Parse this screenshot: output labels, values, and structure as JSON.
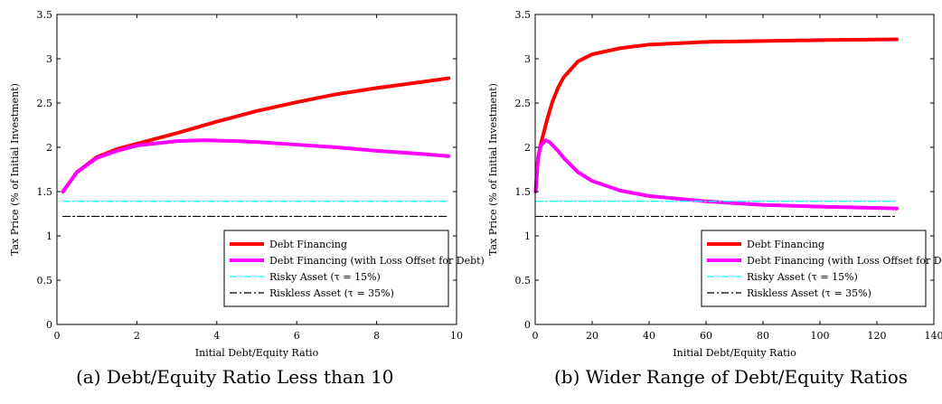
{
  "chart_data": [
    {
      "type": "line",
      "caption": "(a) Debt/Equity Ratio Less than 10",
      "xlabel": "Initial Debt/Equity Ratio",
      "ylabel": "Tax Price (% of Initial Investment)",
      "xlim": [
        0,
        10
      ],
      "ylim": [
        0,
        3.5
      ],
      "xticks": [
        0,
        2,
        4,
        6,
        8,
        10
      ],
      "yticks": [
        0,
        0.5,
        1,
        1.5,
        2,
        2.5,
        3,
        3.5
      ],
      "legend_position": "bottom-right",
      "series": [
        {
          "name": "Debt Financing",
          "color": "#ff0000",
          "style": "solid",
          "width": 4,
          "x": [
            0.15,
            0.5,
            1,
            1.5,
            2,
            3,
            4,
            5,
            6,
            7,
            8,
            9,
            9.8
          ],
          "y": [
            1.5,
            1.72,
            1.89,
            1.98,
            2.04,
            2.16,
            2.29,
            2.41,
            2.51,
            2.6,
            2.67,
            2.73,
            2.78
          ]
        },
        {
          "name": "Debt Financing (with Loss Offset for Debt)",
          "color": "#ff00ff",
          "style": "solid",
          "width": 4,
          "x": [
            0.15,
            0.5,
            1,
            1.5,
            2,
            3,
            3.7,
            4.5,
            5,
            6,
            7,
            8,
            9,
            9.8
          ],
          "y": [
            1.5,
            1.72,
            1.88,
            1.96,
            2.02,
            2.07,
            2.08,
            2.07,
            2.06,
            2.03,
            2.0,
            1.96,
            1.93,
            1.9
          ]
        },
        {
          "name": "Risky Asset (τ = 15%)",
          "color": "#00ffff",
          "style": "dashdot",
          "width": 1.2,
          "x": [
            0.15,
            9.8
          ],
          "y": [
            1.39,
            1.39
          ]
        },
        {
          "name": "Riskless Asset (τ = 35%)",
          "color": "#000000",
          "style": "dashdot",
          "width": 1.2,
          "x": [
            0.15,
            9.8
          ],
          "y": [
            1.22,
            1.22
          ]
        }
      ]
    },
    {
      "type": "line",
      "caption": "(b) Wider Range of Debt/Equity Ratios",
      "xlabel": "Initial Debt/Equity Ratio",
      "ylabel": "Tax Price (% of Initial Investment)",
      "xlim": [
        0,
        140
      ],
      "ylim": [
        0,
        3.5
      ],
      "xticks": [
        0,
        20,
        40,
        60,
        80,
        100,
        120,
        140
      ],
      "yticks": [
        0,
        0.5,
        1,
        1.5,
        2,
        2.5,
        3,
        3.5
      ],
      "legend_position": "bottom-right",
      "series": [
        {
          "name": "Debt Financing",
          "color": "#ff0000",
          "style": "solid",
          "width": 4,
          "x": [
            0.15,
            1,
            2,
            4,
            6,
            8,
            10,
            15,
            20,
            30,
            40,
            60,
            80,
            100,
            127
          ],
          "y": [
            1.5,
            1.89,
            2.04,
            2.29,
            2.51,
            2.67,
            2.79,
            2.97,
            3.05,
            3.12,
            3.16,
            3.19,
            3.2,
            3.21,
            3.22
          ]
        },
        {
          "name": "Debt Financing (with Loss Offset for Debt)",
          "color": "#ff00ff",
          "style": "solid",
          "width": 4,
          "x": [
            0.15,
            1,
            2,
            3.7,
            5,
            8,
            10,
            15,
            20,
            30,
            40,
            60,
            80,
            100,
            127
          ],
          "y": [
            1.5,
            1.88,
            2.02,
            2.08,
            2.06,
            1.96,
            1.88,
            1.72,
            1.62,
            1.51,
            1.45,
            1.39,
            1.35,
            1.33,
            1.31
          ]
        },
        {
          "name": "Risky Asset (τ = 15%)",
          "color": "#00ffff",
          "style": "dashdot",
          "width": 1.2,
          "x": [
            0.15,
            127
          ],
          "y": [
            1.39,
            1.39
          ]
        },
        {
          "name": "Riskless Asset (τ = 35%)",
          "color": "#000000",
          "style": "dashdot",
          "width": 1.2,
          "x": [
            0.15,
            127
          ],
          "y": [
            1.22,
            1.22
          ]
        }
      ]
    }
  ]
}
